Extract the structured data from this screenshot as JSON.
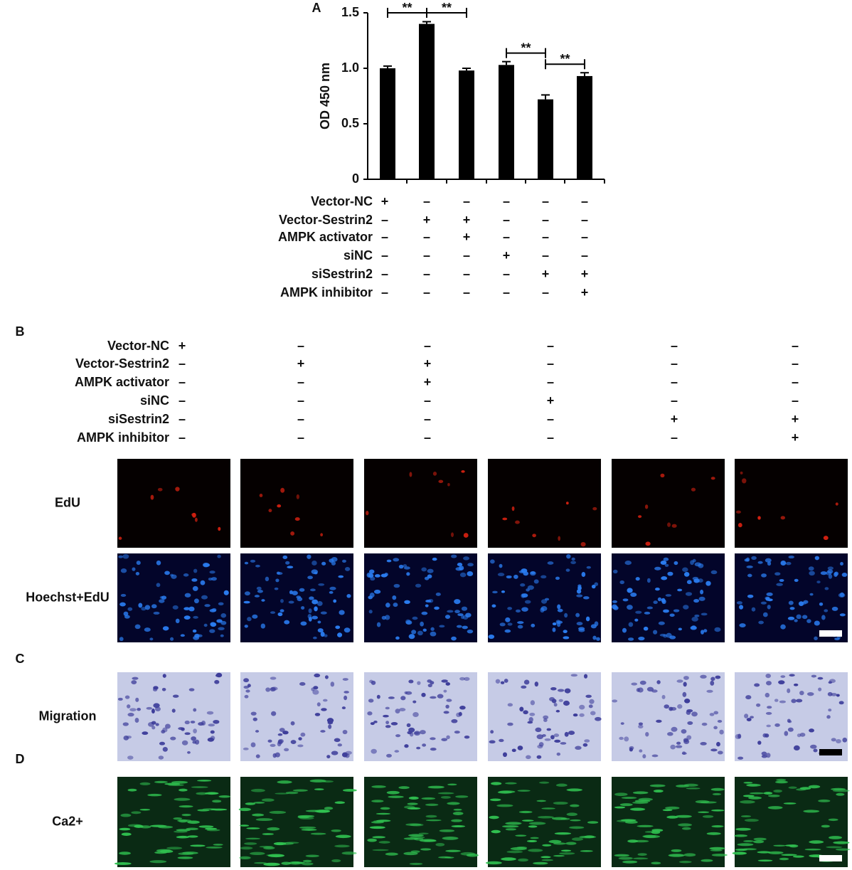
{
  "chart_data": {
    "type": "bar",
    "panel_label": "A",
    "y_label": "OD 450 nm",
    "categories": [
      null,
      null,
      null,
      null,
      null,
      null
    ],
    "values": [
      1.0,
      1.4,
      0.98,
      1.03,
      0.72,
      0.93
    ],
    "errors": [
      0.02,
      0.02,
      0.02,
      0.03,
      0.04,
      0.03
    ],
    "color": "#000000",
    "ylim": [
      0,
      1.5
    ],
    "yticks": [
      0,
      {
        "value": 0.5,
        "label": "0.5"
      },
      {
        "value": 1,
        "label": "1.0"
      },
      1.5
    ],
    "annotations": [
      {
        "text": "**",
        "bars": [
          0,
          1
        ]
      },
      {
        "text": "**",
        "bars": [
          1,
          2
        ]
      },
      {
        "text": "**",
        "bars": [
          3,
          4
        ]
      },
      {
        "text": "**",
        "bars": [
          4,
          5
        ]
      }
    ],
    "conditions": [
      {
        "name": "Vector-NC",
        "signs": [
          "+",
          "–",
          "–",
          "–",
          "–",
          "–"
        ]
      },
      {
        "name": "Vector-Sestrin2",
        "signs": [
          "–",
          "+",
          "+",
          "–",
          "–",
          "–"
        ]
      },
      {
        "name": "AMPK activator",
        "signs": [
          "–",
          "–",
          "+",
          "–",
          "–",
          "–"
        ]
      },
      {
        "name": "siNC",
        "signs": [
          "–",
          "–",
          "–",
          "+",
          "–",
          "–"
        ]
      },
      {
        "name": "siSestrin2",
        "signs": [
          "–",
          "–",
          "–",
          "–",
          "+",
          "+"
        ]
      },
      {
        "name": "AMPK inhibitor",
        "signs": [
          "–",
          "–",
          "–",
          "–",
          "–",
          "+"
        ]
      }
    ]
  },
  "panel_b": {
    "label": "B",
    "conditions": [
      {
        "name": "Vector-NC",
        "signs": [
          "+",
          "–",
          "–",
          "–",
          "–",
          "–"
        ]
      },
      {
        "name": "Vector-Sestrin2",
        "signs": [
          "–",
          "+",
          "+",
          "–",
          "–",
          "–"
        ]
      },
      {
        "name": "AMPK activator",
        "signs": [
          "–",
          "–",
          "+",
          "–",
          "–",
          "–"
        ]
      },
      {
        "name": "siNC",
        "signs": [
          "–",
          "–",
          "–",
          "+",
          "–",
          "–"
        ]
      },
      {
        "name": "siSestrin2",
        "signs": [
          "–",
          "–",
          "–",
          "–",
          "+",
          "+"
        ]
      },
      {
        "name": "AMPK inhibitor",
        "signs": [
          "–",
          "–",
          "–",
          "–",
          "–",
          "+"
        ]
      }
    ],
    "rows": [
      "EdU",
      "Hoechst+EdU"
    ]
  },
  "panel_c": {
    "label": "C",
    "rows": [
      "Migration"
    ]
  },
  "panel_d": {
    "label": "D",
    "rows": [
      "Ca2+"
    ]
  }
}
